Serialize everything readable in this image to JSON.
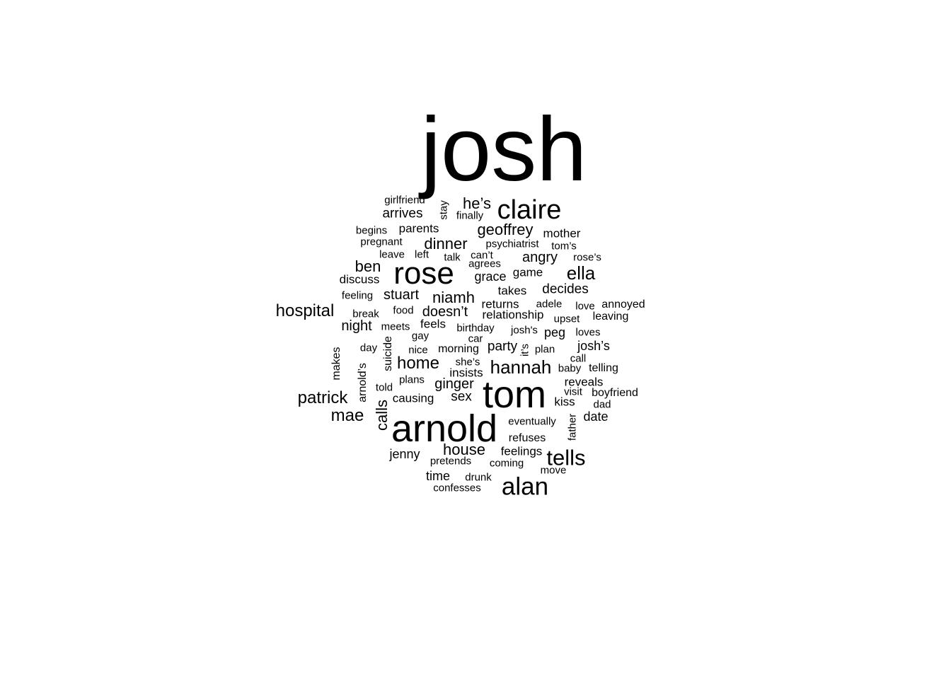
{
  "word_cloud": {
    "text_color": "#000000",
    "background_color": "#ffffff",
    "words": [
      {
        "text": "josh"
      },
      {
        "text": "tom"
      },
      {
        "text": "arnold"
      },
      {
        "text": "rose"
      },
      {
        "text": "claire"
      },
      {
        "text": "alan"
      },
      {
        "text": "tells"
      },
      {
        "text": "ella"
      },
      {
        "text": "hannah"
      },
      {
        "text": "hospital"
      },
      {
        "text": "patrick"
      },
      {
        "text": "mae"
      },
      {
        "text": "home"
      },
      {
        "text": "house"
      },
      {
        "text": "geoffrey"
      },
      {
        "text": "he’s"
      },
      {
        "text": "niamh"
      },
      {
        "text": "dinner"
      },
      {
        "text": "ben"
      },
      {
        "text": "calls"
      },
      {
        "text": "stuart"
      },
      {
        "text": "doesn’t"
      },
      {
        "text": "angry"
      },
      {
        "text": "decides"
      },
      {
        "text": "ginger"
      },
      {
        "text": "arrives"
      },
      {
        "text": "night"
      },
      {
        "text": "party"
      },
      {
        "text": "sex"
      },
      {
        "text": "josh’s"
      },
      {
        "text": "date"
      },
      {
        "text": "grace"
      },
      {
        "text": "time"
      },
      {
        "text": "parents"
      },
      {
        "text": "jenny"
      },
      {
        "text": "causing"
      },
      {
        "text": "feelings"
      },
      {
        "text": "peg"
      },
      {
        "text": "discuss"
      },
      {
        "text": "feels"
      },
      {
        "text": "game"
      },
      {
        "text": "mother"
      },
      {
        "text": "reveals"
      },
      {
        "text": "takes"
      },
      {
        "text": "insists"
      },
      {
        "text": "returns"
      },
      {
        "text": "relationship"
      },
      {
        "text": "morning"
      },
      {
        "text": "refuses"
      },
      {
        "text": "leaving"
      },
      {
        "text": "annoyed"
      },
      {
        "text": "boyfriend"
      },
      {
        "text": "kiss"
      },
      {
        "text": "telling"
      },
      {
        "text": "arnold’s"
      },
      {
        "text": "suicide"
      },
      {
        "text": "makes"
      },
      {
        "text": "girlfriend"
      },
      {
        "text": "finally"
      },
      {
        "text": "begins"
      },
      {
        "text": "pregnant"
      },
      {
        "text": "psychiatrist"
      },
      {
        "text": "tom’s"
      },
      {
        "text": "leave"
      },
      {
        "text": "left"
      },
      {
        "text": "talk"
      },
      {
        "text": "can’t"
      },
      {
        "text": "agrees"
      },
      {
        "text": "rose’s"
      },
      {
        "text": "feeling"
      },
      {
        "text": "break"
      },
      {
        "text": "food"
      },
      {
        "text": "adele"
      },
      {
        "text": "love"
      },
      {
        "text": "meets"
      },
      {
        "text": "birthday"
      },
      {
        "text": "josh's"
      },
      {
        "text": "upset"
      },
      {
        "text": "loves"
      },
      {
        "text": "gay"
      },
      {
        "text": "car"
      },
      {
        "text": "day"
      },
      {
        "text": "nice"
      },
      {
        "text": "it’s"
      },
      {
        "text": "plan"
      },
      {
        "text": "she’s"
      },
      {
        "text": "call"
      },
      {
        "text": "baby"
      },
      {
        "text": "told"
      },
      {
        "text": "plans"
      },
      {
        "text": "visit"
      },
      {
        "text": "dad"
      },
      {
        "text": "eventually"
      },
      {
        "text": "father"
      },
      {
        "text": "pretends"
      },
      {
        "text": "coming"
      },
      {
        "text": "move"
      },
      {
        "text": "drunk"
      },
      {
        "text": "confesses"
      },
      {
        "text": "stay"
      }
    ]
  }
}
